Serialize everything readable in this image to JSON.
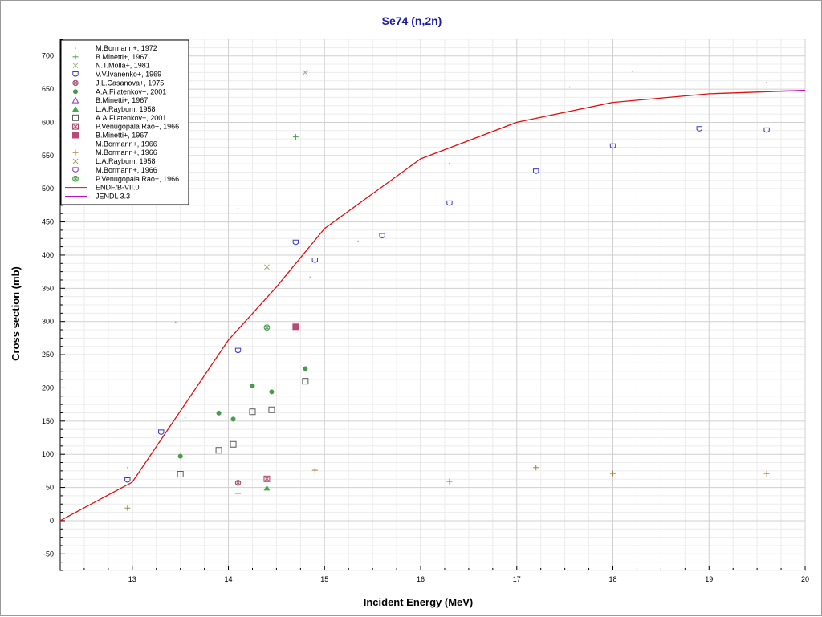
{
  "chart_data": {
    "type": "scatter",
    "title": "Se74 (n,2n)",
    "xlabel": "Incident Energy (MeV)",
    "ylabel": "Cross section (mb)",
    "xlim": [
      12.25,
      20
    ],
    "ylim": [
      -75,
      725
    ],
    "x_ticks": [
      13,
      14,
      15,
      16,
      17,
      18,
      19,
      20
    ],
    "y_ticks": [
      -50,
      0,
      50,
      100,
      150,
      200,
      250,
      300,
      350,
      400,
      450,
      500,
      550,
      600,
      650,
      700
    ],
    "grid": true,
    "legend_position": "top-left",
    "series": [
      {
        "name": "M.Bormann+, 1972",
        "marker": "dot",
        "color": "#9ab89a",
        "x": [
          12.95,
          13.55,
          14.1,
          14.85,
          15.35,
          16.3,
          17.55,
          18.2,
          19.6
        ],
        "y": [
          80,
          155,
          470,
          367,
          421,
          538,
          653,
          677,
          660
        ]
      },
      {
        "name": "B.Minetti+, 1967",
        "marker": "plus",
        "color": "#4a9a4a",
        "x": [
          14.7
        ],
        "y": [
          578
        ]
      },
      {
        "name": "N.T.Molla+, 1981",
        "marker": "x",
        "color": "#8ab08a",
        "x": [
          14.8
        ],
        "y": [
          675
        ]
      },
      {
        "name": "V.V.Ivanenko+, 1969",
        "marker": "open-shield",
        "color": "#3a3ac8",
        "x": [
          12.95,
          13.3,
          14.1,
          14.7,
          14.9,
          15.6,
          16.3,
          17.2,
          18.0,
          18.9,
          19.6
        ],
        "y": [
          61,
          133,
          256,
          419,
          392,
          429,
          478,
          526,
          564,
          590,
          588
        ]
      },
      {
        "name": "J.L.Casanova+, 1975",
        "marker": "crossed-circle",
        "color": "#a04a6a",
        "x": [
          14.1
        ],
        "y": [
          57
        ]
      },
      {
        "name": "A.A.Filatenkov+, 2001",
        "marker": "filled-circle",
        "color": "#4a9a4a",
        "x": [
          13.5,
          13.9,
          14.05,
          14.25,
          14.45,
          14.8
        ],
        "y": [
          97,
          162,
          153,
          203,
          194,
          229
        ]
      },
      {
        "name": "B.Minetti+, 1967",
        "marker": "open-triangle",
        "color": "#8a3ab8",
        "x": [],
        "y": []
      },
      {
        "name": "L.A.Raybum, 1958",
        "marker": "filled-triangle",
        "color": "#4aa84a",
        "x": [
          14.4
        ],
        "y": [
          49
        ]
      },
      {
        "name": "A.A.Filatenkov+, 2001",
        "marker": "open-square",
        "color": "#5a5a5a",
        "x": [
          13.5,
          13.9,
          14.05,
          14.25,
          14.45,
          14.8
        ],
        "y": [
          70,
          106,
          115,
          164,
          167,
          210
        ]
      },
      {
        "name": "P.Venugopala Rao+, 1966",
        "marker": "crossed-square",
        "color": "#b04a6a",
        "x": [
          14.4
        ],
        "y": [
          63
        ]
      },
      {
        "name": "B.Minetti+, 1967",
        "marker": "filled-square",
        "color": "#b84a7a",
        "x": [
          14.7
        ],
        "y": [
          292
        ]
      },
      {
        "name": "M.Bormann+, 1966",
        "marker": "dot",
        "color": "#8aa8a8",
        "x": [
          13.45
        ],
        "y": [
          299
        ]
      },
      {
        "name": "M.Bormann+, 1966",
        "marker": "plus",
        "color": "#a8803a",
        "x": [
          12.95,
          14.1,
          14.9,
          16.3,
          17.2,
          18.0,
          19.6
        ],
        "y": [
          19,
          41,
          76,
          59,
          80,
          71,
          71
        ]
      },
      {
        "name": "L.A.Raybum, 1958",
        "marker": "x",
        "color": "#9a9a4a",
        "x": [
          14.4
        ],
        "y": [
          382
        ]
      },
      {
        "name": "M.Bormann+, 1966",
        "marker": "open-shield",
        "color": "#8a3ab8",
        "x": [],
        "y": []
      },
      {
        "name": "P.Venugopala Rao+, 1966",
        "marker": "crossed-circle-green",
        "color": "#4a9a4a",
        "x": [
          14.4
        ],
        "y": [
          291
        ]
      },
      {
        "name": "ENDF/B-VII.0",
        "marker": "line",
        "color": "#e01010",
        "x": [
          12.25,
          13.0,
          14.0,
          14.5,
          15.0,
          16.0,
          17.0,
          18.0,
          19.0,
          20.0
        ],
        "y": [
          0,
          58,
          272,
          352,
          440,
          545,
          600,
          630,
          643,
          648
        ]
      },
      {
        "name": "JENDL 3.3",
        "marker": "line",
        "color": "#c010c0",
        "x": [
          19.5,
          20.0
        ],
        "y": [
          646,
          648
        ]
      }
    ]
  }
}
